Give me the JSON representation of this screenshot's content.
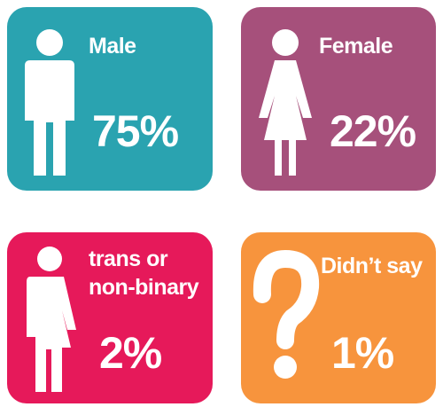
{
  "tiles": [
    {
      "label": "Male",
      "value": "75%",
      "color": "#2aa3b0"
    },
    {
      "label": "Female",
      "value": "22%",
      "color": "#a6507b"
    },
    {
      "label": "trans or non-binary",
      "value": "2%",
      "color": "#e6195a"
    },
    {
      "label": "Didn’t say",
      "value": "1%",
      "color": "#f7943d"
    }
  ]
}
